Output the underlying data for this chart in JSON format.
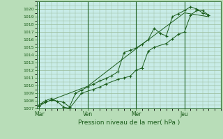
{
  "bg_color": "#b8ddb8",
  "plot_bg_color": "#c8ece8",
  "grid_color": "#99bb99",
  "line_color": "#1a5c1a",
  "xlabel": "Pression niveau de la mer( hPa )",
  "ylim": [
    1007,
    1021
  ],
  "yticks": [
    1007,
    1008,
    1009,
    1010,
    1011,
    1012,
    1013,
    1014,
    1015,
    1016,
    1017,
    1018,
    1019,
    1020
  ],
  "day_labels": [
    "Mar",
    "Ven",
    "Mer",
    "Jeu"
  ],
  "day_positions": [
    0,
    4,
    8,
    12
  ],
  "xlim": [
    -0.2,
    15.0
  ],
  "series1_x": [
    0.0,
    0.5,
    1.0,
    2.0,
    2.5,
    3.0,
    3.5,
    4.0,
    4.5,
    5.0,
    5.5,
    6.0,
    6.5,
    7.0,
    7.5,
    8.0,
    8.5,
    9.0,
    9.5,
    10.0,
    10.5,
    11.0,
    11.5,
    12.0,
    12.5,
    13.0,
    13.5,
    14.0
  ],
  "series1_y": [
    1007.3,
    1007.8,
    1008.1,
    1007.8,
    1007.2,
    1009.0,
    1009.4,
    1009.8,
    1010.2,
    1010.6,
    1010.9,
    1011.3,
    1011.8,
    1014.3,
    1014.6,
    1014.9,
    1015.4,
    1016.0,
    1017.5,
    1016.8,
    1016.5,
    1019.0,
    1019.4,
    1019.8,
    1020.3,
    1020.0,
    1019.5,
    1019.2
  ],
  "series2_x": [
    0.0,
    0.5,
    1.0,
    1.5,
    2.0,
    2.5,
    3.5,
    4.5,
    5.0,
    5.5,
    6.5,
    7.0,
    7.5,
    8.0,
    8.5,
    9.0,
    9.5,
    10.5,
    11.0,
    11.5,
    12.0,
    12.5,
    13.0,
    13.5,
    14.0
  ],
  "series2_y": [
    1007.5,
    1008.0,
    1008.3,
    1007.9,
    1007.2,
    1007.0,
    1009.0,
    1009.5,
    1009.8,
    1010.2,
    1010.8,
    1011.0,
    1011.2,
    1012.0,
    1012.3,
    1014.5,
    1015.0,
    1015.5,
    1016.1,
    1016.7,
    1017.0,
    1019.2,
    1019.8,
    1019.8,
    1019.2
  ],
  "series3_x": [
    0.0,
    4.0,
    8.0,
    12.0,
    14.0
  ],
  "series3_y": [
    1007.5,
    1009.9,
    1014.8,
    1019.5,
    1019.0
  ]
}
